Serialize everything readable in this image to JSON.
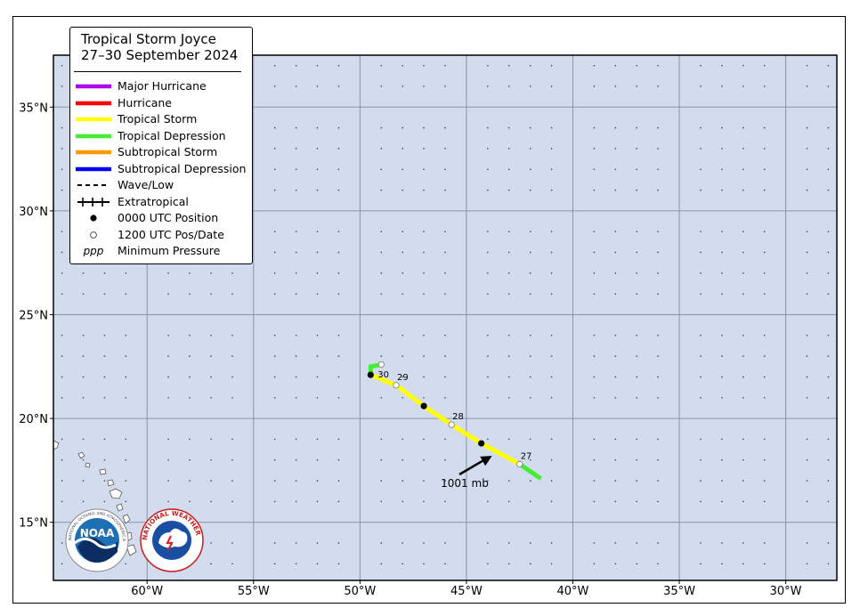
{
  "legend": {
    "title_line1": "Tropical Storm Joyce",
    "title_line2": "27–30 September 2024",
    "items": [
      {
        "label": "Major Hurricane",
        "kind": "line",
        "color": "#b000f0"
      },
      {
        "label": "Hurricane",
        "kind": "line",
        "color": "#ff0000"
      },
      {
        "label": "Tropical Storm",
        "kind": "line",
        "color": "#ffff00"
      },
      {
        "label": "Tropical Depression",
        "kind": "line",
        "color": "#44ee33"
      },
      {
        "label": "Subtropical Storm",
        "kind": "line",
        "color": "#ff9900"
      },
      {
        "label": "Subtropical Depression",
        "kind": "line",
        "color": "#0000ff"
      },
      {
        "label": "Wave/Low",
        "kind": "dashed",
        "color": "#000000"
      },
      {
        "label": "Extratropical",
        "kind": "crossed",
        "color": "#000000"
      },
      {
        "label": "0000 UTC Position",
        "kind": "filled-dot",
        "color": "#000000"
      },
      {
        "label": "1200 UTC Pos/Date",
        "kind": "open-dot",
        "color": "#000000"
      },
      {
        "label": "Minimum Pressure",
        "kind": "ppp",
        "symbol": "ppp",
        "color": "#000000"
      }
    ]
  },
  "map": {
    "ocean_color": "#d3dcee",
    "land_color": "#ffffff",
    "lon_labels": [
      "60°W",
      "55°W",
      "50°W",
      "45°W",
      "40°W",
      "35°W",
      "30°W"
    ],
    "lat_labels": [
      "35°N",
      "30°N",
      "25°N",
      "20°N",
      "15°N"
    ],
    "lon_values": [
      -60,
      -55,
      -50,
      -45,
      -40,
      -35,
      -30
    ],
    "lat_values": [
      35,
      30,
      25,
      20,
      15
    ],
    "lon_range": [
      -64.4,
      -27.6
    ],
    "lat_range": [
      12.2,
      37.5
    ]
  },
  "track": {
    "segments": [
      {
        "stage": "Tropical Depression",
        "color": "#44ee33",
        "points": [
          [
            -41.5,
            17.1
          ],
          [
            -42.5,
            17.8
          ]
        ]
      },
      {
        "stage": "Tropical Storm",
        "color": "#ffff00",
        "points": [
          [
            -42.5,
            17.8
          ],
          [
            -44.3,
            18.8
          ],
          [
            -45.7,
            19.7
          ],
          [
            -47.0,
            20.6
          ],
          [
            -48.3,
            21.6
          ],
          [
            -49.5,
            22.1
          ]
        ]
      },
      {
        "stage": "Tropical Depression",
        "color": "#44ee33",
        "points": [
          [
            -49.5,
            22.1
          ],
          [
            -49.5,
            22.5
          ],
          [
            -49.0,
            22.6
          ]
        ]
      }
    ],
    "positions_0000utc": [
      [
        -44.3,
        18.8
      ],
      [
        -47.0,
        20.6
      ],
      [
        -49.5,
        22.1
      ]
    ],
    "positions_1200utc": [
      {
        "lon": -42.5,
        "lat": 17.8,
        "date": "27"
      },
      {
        "lon": -45.7,
        "lat": 19.7,
        "date": "28"
      },
      {
        "lon": -48.3,
        "lat": 21.6,
        "date": "29"
      },
      {
        "lon": -49.0,
        "lat": 22.6,
        "date": ""
      }
    ],
    "date_label_30": "30",
    "min_pressure": {
      "label": "1001 mb",
      "lon": -43.8,
      "lat": 18.2
    }
  },
  "logos": {
    "noaa": {
      "text": "NOAA",
      "ring_text": "NATIONAL OCEANIC AND ATMOSPHERIC ADMINISTRATION · U.S. DEPARTMENT OF COMMERCE"
    },
    "nws": {
      "ring_text": "NATIONAL WEATHER SERVICE"
    }
  }
}
